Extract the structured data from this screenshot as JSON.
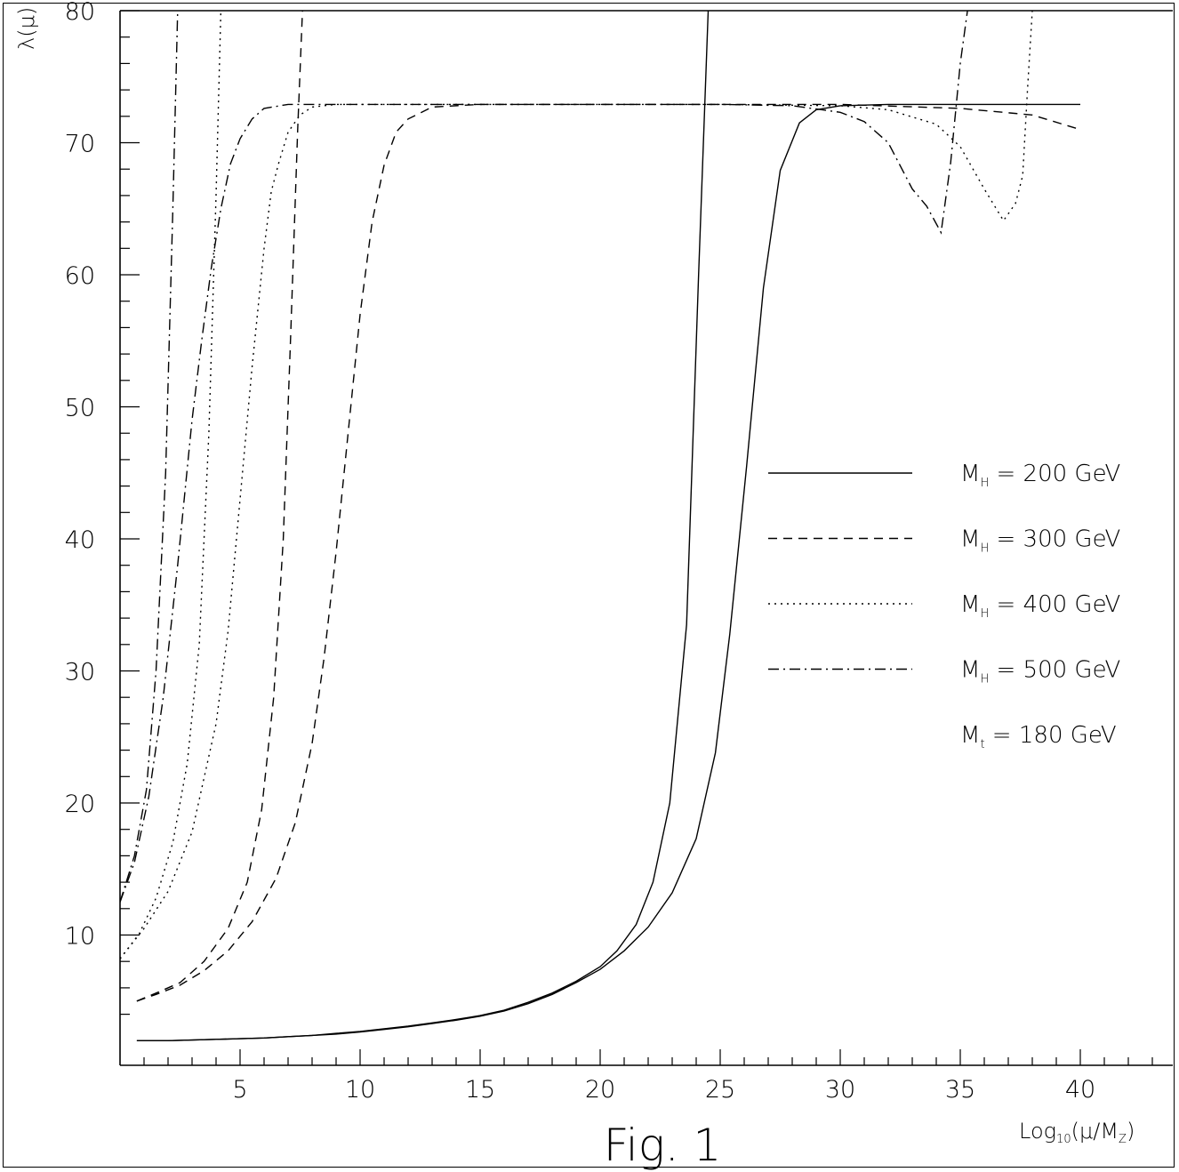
{
  "chart_data": {
    "type": "line",
    "title": "",
    "caption": "Fig. 1",
    "xlabel": "Log₁₀(μ/M_Z)",
    "xlabel_parts": {
      "pre": "Log",
      "sub": "10",
      "post": "(μ/M",
      "sub2": "Z",
      "end": ")"
    },
    "ylabel": "λ(μ)",
    "xlim": [
      0,
      43
    ],
    "ylim": [
      2,
      80
    ],
    "x_ticks": [
      5,
      10,
      15,
      20,
      25,
      30,
      35,
      40
    ],
    "y_ticks": [
      10,
      20,
      30,
      40,
      50,
      60,
      70,
      80
    ],
    "grid": false,
    "legend_position": "right",
    "legend_note": {
      "pre": "M",
      "sub": "t",
      "post": " = 180 GeV"
    },
    "series": [
      {
        "name": "M_H = 200 GeV",
        "label_pre": "M",
        "label_sub": "H",
        "label_post": " = 200 GeV",
        "dash": "solid",
        "branches": [
          {
            "x": [
              0.7,
              2,
              3,
              4,
              5,
              6,
              7,
              8,
              9,
              10,
              11,
              12,
              13,
              14,
              15,
              16,
              17,
              18,
              19,
              20,
              20.7,
              21.5,
              22.2,
              22.9,
              23.6,
              24.1,
              24.5
            ],
            "y": [
              2,
              2,
              2.05,
              2.1,
              2.15,
              2.2,
              2.3,
              2.4,
              2.55,
              2.7,
              2.9,
              3.1,
              3.35,
              3.6,
              3.9,
              4.3,
              4.9,
              5.6,
              6.5,
              7.6,
              8.8,
              10.8,
              14,
              20,
              33.5,
              60,
              80
            ]
          },
          {
            "x": [
              0.7,
              2,
              3,
              4,
              5,
              6,
              7,
              8,
              9,
              10,
              11,
              12,
              13,
              14,
              15,
              16,
              17,
              18,
              19,
              20,
              21,
              22,
              23,
              24,
              24.8,
              25.4,
              26.1,
              26.8,
              27.5,
              28.3,
              29,
              30,
              31,
              32,
              35,
              40
            ],
            "y": [
              2,
              2,
              2.05,
              2.1,
              2.15,
              2.2,
              2.3,
              2.4,
              2.5,
              2.65,
              2.85,
              3.05,
              3.3,
              3.55,
              3.85,
              4.25,
              4.8,
              5.5,
              6.4,
              7.4,
              8.8,
              10.6,
              13.2,
              17.3,
              23.8,
              32.8,
              45.5,
              59,
              67.9,
              71.5,
              72.5,
              72.8,
              72.85,
              72.9,
              72.9,
              72.9
            ]
          }
        ]
      },
      {
        "name": "M_H = 300 GeV",
        "label_pre": "M",
        "label_sub": "H",
        "label_post": " = 300 GeV",
        "dash": "10 7",
        "branches": [
          {
            "x": [
              0.7,
              1.5,
              2.5,
              3.5,
              4.5,
              5.3,
              5.9,
              6.4,
              6.8,
              7.1,
              7.4,
              7.6
            ],
            "y": [
              5,
              5.6,
              6.4,
              8,
              10.5,
              14,
              19.5,
              28,
              40,
              55,
              71,
              80
            ]
          },
          {
            "x": [
              0.7,
              1.5,
              2.5,
              3.5,
              4.5,
              5.5,
              6.5,
              7.3,
              8,
              8.5,
              9,
              9.5,
              10,
              10.5,
              11,
              11.5,
              12,
              13,
              15,
              20,
              25,
              30,
              35,
              38,
              40
            ],
            "y": [
              5,
              5.5,
              6.2,
              7.3,
              8.8,
              11,
              14.3,
              18.5,
              24.5,
              31,
              39,
              48,
              57,
              64,
              68.3,
              70.8,
              71.8,
              72.7,
              72.9,
              72.9,
              72.9,
              72.9,
              72.6,
              72.1,
              71
            ]
          }
        ]
      },
      {
        "name": "M_H = 400 GeV",
        "label_pre": "M",
        "label_sub": "H",
        "label_post": " = 400 GeV",
        "dash": "2 5",
        "branches": [
          {
            "x": [
              0,
              0.8,
              1.5,
              2.2,
              2.8,
              3.3,
              3.7,
              4,
              4.2
            ],
            "y": [
              8.2,
              10.1,
              12.8,
              17,
              23,
              32,
              48,
              66,
              80
            ]
          },
          {
            "x": [
              0,
              1,
              2,
              3,
              4,
              4.5,
              5,
              5.5,
              6,
              6.3,
              6.6,
              7,
              7.5,
              8,
              9,
              10,
              12,
              15,
              20,
              25,
              30,
              32,
              34,
              35,
              36,
              36.8,
              37.3,
              37.6,
              37.8,
              38
            ],
            "y": [
              8.2,
              10.5,
              13.3,
              17.8,
              26,
              33,
              43,
              53,
              62,
              66.3,
              68.4,
              70.8,
              72.1,
              72.7,
              72.9,
              72.9,
              72.9,
              72.9,
              72.9,
              72.9,
              72.8,
              72.5,
              71.4,
              69.7,
              66.5,
              64.1,
              65.4,
              67.5,
              74,
              80
            ]
          }
        ]
      },
      {
        "name": "M_H = 500 GeV",
        "label_pre": "M",
        "label_sub": "H",
        "label_post": " = 500 GeV",
        "dash": "12 5 2 5",
        "branches": [
          {
            "x": [
              0,
              0.6,
              1.1,
              1.5,
              1.9,
              2.2,
              2.4
            ],
            "y": [
              12.5,
              16,
              21,
              30,
              45,
              65,
              80
            ]
          },
          {
            "x": [
              0,
              0.6,
              1.2,
              1.8,
              2.4,
              3,
              3.4,
              3.8,
              4.2,
              4.6,
              5,
              5.5,
              6,
              7,
              8,
              10,
              15,
              20,
              25,
              28,
              30,
              31,
              32,
              33,
              33.6,
              34.2,
              34.6,
              35,
              35.3
            ],
            "y": [
              12.5,
              15.5,
              20.5,
              28,
              38,
              49,
              55,
              60.5,
              65,
              68.4,
              70.3,
              71.8,
              72.6,
              72.9,
              72.9,
              72.9,
              72.9,
              72.9,
              72.9,
              72.8,
              72.3,
              71.6,
              70,
              66.5,
              65.2,
              63.2,
              68.5,
              76,
              80
            ]
          }
        ]
      }
    ]
  }
}
